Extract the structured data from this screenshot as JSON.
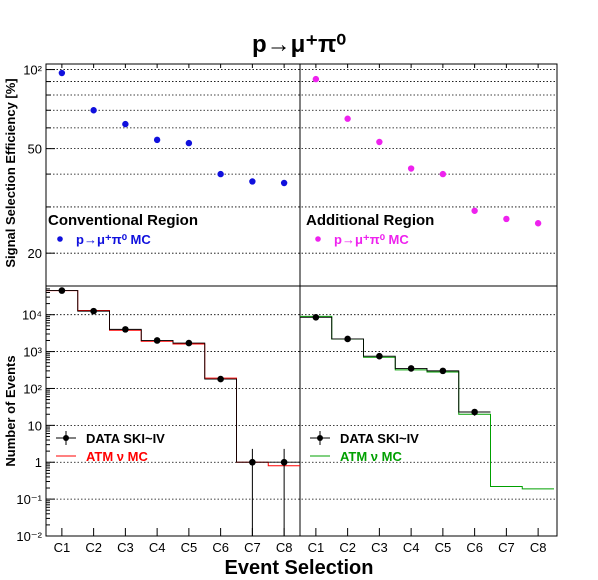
{
  "chart_data": {
    "title": "p→μ⁺π⁰",
    "xlabel": "Event Selection",
    "categories": [
      "C1",
      "C2",
      "C3",
      "C4",
      "C5",
      "C6",
      "C7",
      "C8"
    ],
    "colors": {
      "conventional_eff": "#1010dd",
      "additional_eff": "#ee22ee",
      "conv_mc": "#ff0000",
      "add_mc": "#00a000",
      "data": "#000000"
    },
    "top": {
      "type": "scatter",
      "ylabel": "Signal Selection Efficiency [%]",
      "yscale": "log",
      "ylim": [
        15,
        105
      ],
      "yticks": [
        "20",
        "50",
        "10²"
      ],
      "panels": [
        {
          "region_label": "Conventional Region",
          "legend": "p→μ⁺π⁰ MC",
          "values": [
            97,
            70,
            62,
            54,
            52.5,
            40,
            37.5,
            37
          ]
        },
        {
          "region_label": "Additional Region",
          "legend": "p→μ⁺π⁰ MC",
          "values": [
            92,
            65,
            53,
            42,
            40,
            29,
            27,
            26
          ]
        }
      ]
    },
    "bottom": {
      "type": "line",
      "ylabel": "Number of Events",
      "yscale": "log",
      "ylim": [
        0.01,
        60000
      ],
      "yticks": [
        "10⁻²",
        "10⁻¹",
        "1",
        "10",
        "10²",
        "10³",
        "10⁴"
      ],
      "panels": [
        {
          "legend_data": "DATA SKI~IV",
          "legend_mc": "ATM ν MC",
          "data": [
            45000,
            12500,
            4000,
            2000,
            1700,
            180,
            1,
            1
          ],
          "mc": [
            45000,
            13000,
            3800,
            1900,
            1600,
            190,
            1,
            0.8
          ]
        },
        {
          "legend_data": "DATA SKI~IV",
          "legend_mc": "ATM ν MC",
          "data": [
            8500,
            2200,
            750,
            350,
            300,
            23,
            null,
            null
          ],
          "mc": [
            9000,
            2200,
            700,
            320,
            280,
            20,
            0.22,
            0.19
          ]
        }
      ]
    }
  }
}
